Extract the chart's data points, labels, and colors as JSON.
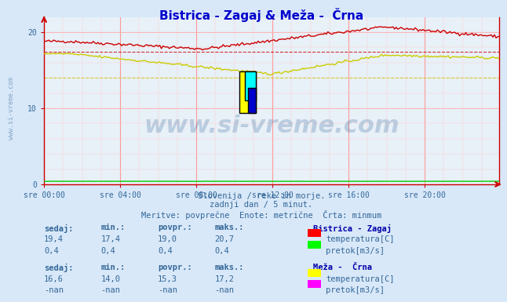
{
  "title": "Bistrica - Zagaj & Meža -  Črna",
  "title_color": "#0000cc",
  "bg_color": "#d8e8f8",
  "plot_bg_color": "#e8f0f8",
  "grid_color_major": "#ff9999",
  "grid_color_minor": "#ffcccc",
  "x_ticks": [
    "sre 00:00",
    "sre 04:00",
    "sre 08:00",
    "sre 12:00",
    "sre 16:00",
    "sre 20:00"
  ],
  "x_tick_positions": [
    0,
    48,
    96,
    144,
    192,
    240
  ],
  "y_ticks": [
    0,
    10,
    20
  ],
  "ylim": [
    0,
    22
  ],
  "xlim": [
    0,
    287
  ],
  "n_points": 288,
  "bistrica_temp_start": 18.8,
  "bistrica_temp_min": 17.4,
  "bistrica_temp_max": 20.7,
  "bistrica_temp_end": 19.4,
  "bistrica_temp_povpr": 19.0,
  "meza_temp_start": 17.2,
  "meza_temp_min": 14.0,
  "meza_temp_max": 17.2,
  "meza_temp_end": 16.6,
  "meza_temp_povpr": 15.3,
  "red_line_color": "#cc0000",
  "yellow_line_color": "#cccc00",
  "green_line_color": "#00cc00",
  "magenta_line_color": "#ff00ff",
  "dashed_red_color": "#cc0000",
  "dashed_yellow_color": "#cccc00",
  "axis_color": "#cc0000",
  "tick_color": "#336699",
  "subtitle1": "Slovenija / reke in morje.",
  "subtitle2": "zadnji dan / 5 minut.",
  "subtitle3": "Meritve: povprečne  Enote: metrične  Črta: minmum",
  "station1_name": "Bistrica - Zagaj",
  "station1_sedaj": "19,4",
  "station1_min": "17,4",
  "station1_povpr": "19,0",
  "station1_maks": "20,7",
  "station1_temp_label": "temperatura[C]",
  "station1_flow_label": "pretok[m3/s]",
  "station1_flow_sedaj": "0,4",
  "station1_flow_min": "0,4",
  "station1_flow_povpr": "0,4",
  "station1_flow_maks": "0,4",
  "station2_name": "Meža -  Črna",
  "station2_sedaj": "16,6",
  "station2_min": "14,0",
  "station2_povpr": "15,3",
  "station2_maks": "17,2",
  "station2_temp_label": "temperatura[C]",
  "station2_flow_label": "pretok[m3/s]",
  "station2_flow_sedaj": "-nan",
  "station2_flow_min": "-nan",
  "station2_flow_povpr": "-nan",
  "station2_flow_maks": "-nan",
  "watermark_text": "www.si-vreme.com",
  "watermark_color": "#336699",
  "watermark_alpha": 0.25
}
